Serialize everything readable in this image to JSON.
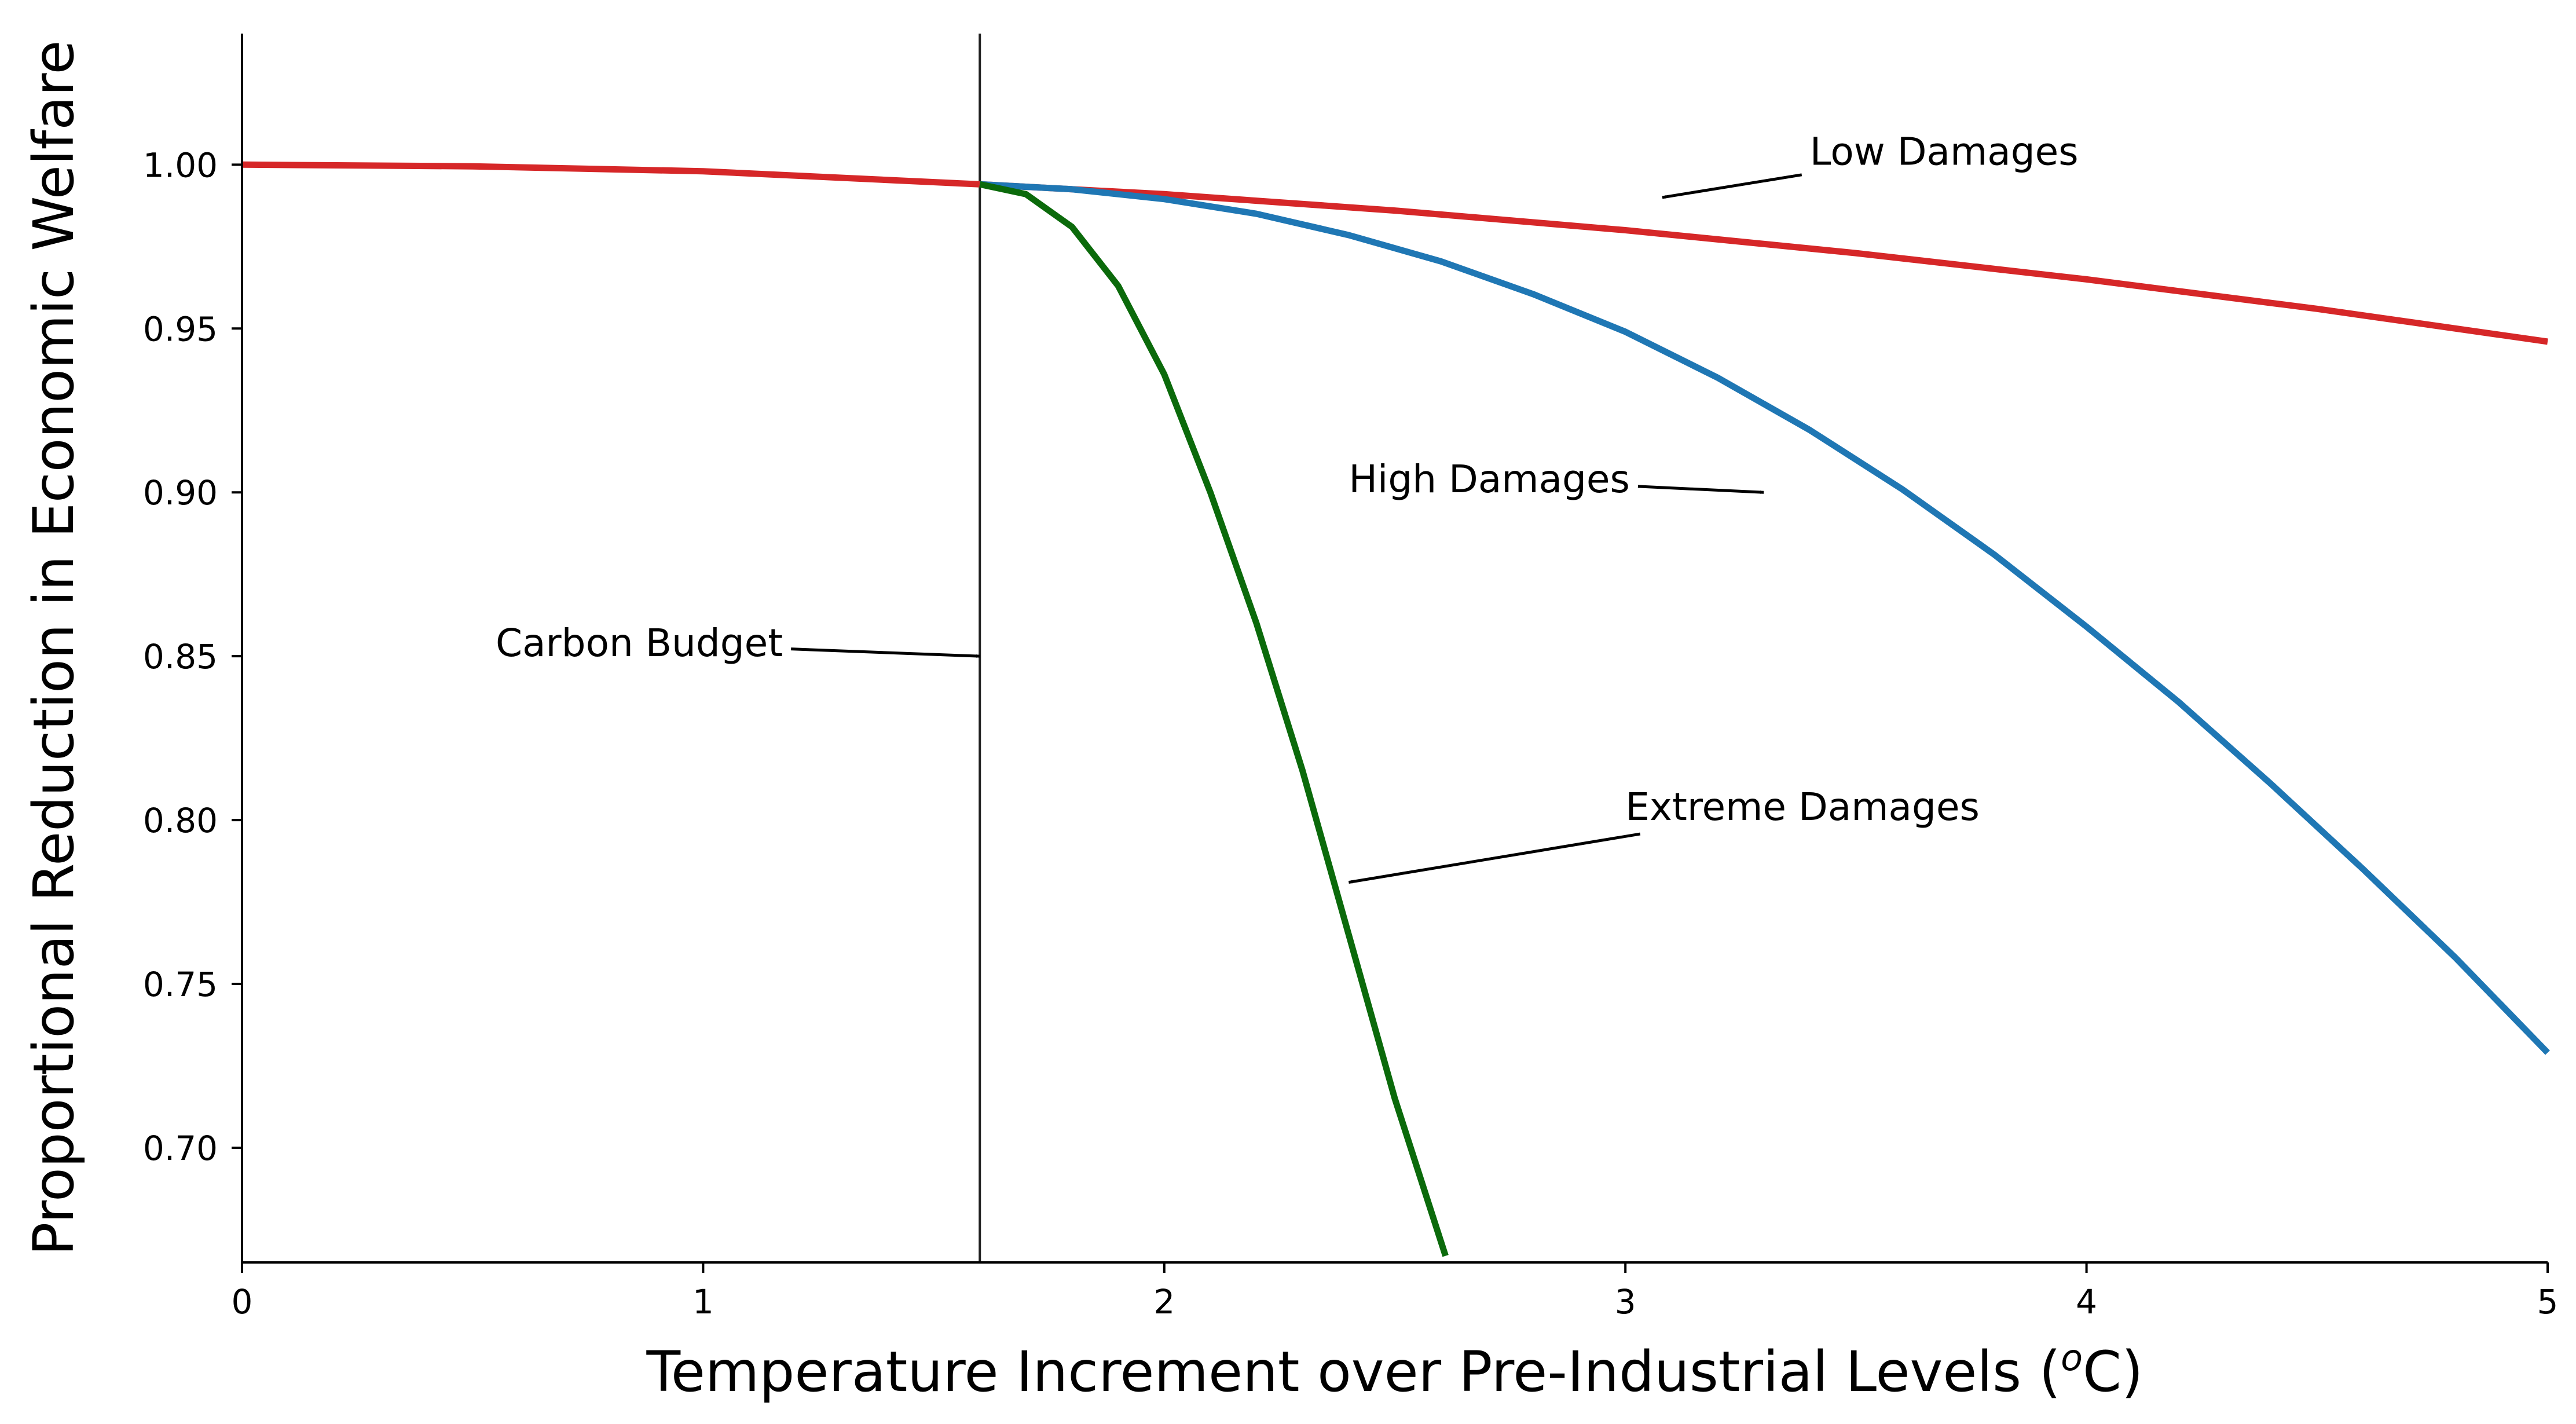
{
  "chart_data": {
    "type": "line",
    "title": "",
    "xlabel": "Temperature Increment over Pre-Industrial Levels (",
    "xlabel_sup": "o",
    "xlabel_unit": "C)",
    "ylabel": "Proportional Reduction in Economic Welfare",
    "xlim": [
      0,
      5
    ],
    "ylim": [
      0.665,
      1.04
    ],
    "xticks": [
      0,
      1,
      2,
      3,
      4,
      5
    ],
    "xtick_labels": [
      "0",
      "1",
      "2",
      "3",
      "4",
      "5"
    ],
    "yticks": [
      0.7,
      0.75,
      0.8,
      0.85,
      0.9,
      0.95,
      1.0
    ],
    "ytick_labels": [
      "0.70",
      "0.75",
      "0.80",
      "0.85",
      "0.90",
      "0.95",
      "1.00"
    ],
    "grid": false,
    "vertical_line": {
      "x": 1.6,
      "color": "#222222"
    },
    "series": [
      {
        "id": "low",
        "color": "#d62728",
        "x": [
          0,
          0.5,
          1.0,
          1.6,
          2.0,
          2.5,
          3.0,
          3.5,
          4.0,
          4.5,
          5.0
        ],
        "values": [
          1.0,
          0.9995,
          0.998,
          0.994,
          0.991,
          0.986,
          0.98,
          0.973,
          0.965,
          0.956,
          0.946
        ]
      },
      {
        "id": "high",
        "color": "#1f77b4",
        "x": [
          1.6,
          1.8,
          2.0,
          2.2,
          2.4,
          2.6,
          2.8,
          3.0,
          3.2,
          3.4,
          3.6,
          3.8,
          4.0,
          4.2,
          4.4,
          4.6,
          4.8,
          5.0
        ],
        "values": [
          0.994,
          0.9925,
          0.9895,
          0.985,
          0.9785,
          0.9705,
          0.9605,
          0.949,
          0.935,
          0.919,
          0.901,
          0.881,
          0.859,
          0.836,
          0.811,
          0.785,
          0.758,
          0.729
        ]
      },
      {
        "id": "extreme",
        "color": "#0b6a0b",
        "x": [
          1.6,
          1.7,
          1.8,
          1.9,
          2.0,
          2.1,
          2.2,
          2.3,
          2.4,
          2.5,
          2.61
        ],
        "values": [
          0.994,
          0.991,
          0.981,
          0.963,
          0.936,
          0.9,
          0.86,
          0.815,
          0.765,
          0.715,
          0.667
        ]
      }
    ],
    "annotations": [
      {
        "id": "low",
        "text": "Low Damages",
        "text_x": 3.4,
        "text_y": 1.0,
        "arrow_x": 3.08,
        "arrow_y": 0.99
      },
      {
        "id": "high",
        "text": "High Damages",
        "text_x": 2.4,
        "text_y": 0.9,
        "arrow_x": 3.3,
        "arrow_y": 0.9
      },
      {
        "id": "budget",
        "text": "Carbon Budget",
        "text_x": 0.55,
        "text_y": 0.85,
        "arrow_x": 1.6,
        "arrow_y": 0.85
      },
      {
        "id": "extreme",
        "text": "Extreme Damages",
        "text_x": 3.0,
        "text_y": 0.8,
        "arrow_x": 2.4,
        "arrow_y": 0.781
      }
    ]
  }
}
